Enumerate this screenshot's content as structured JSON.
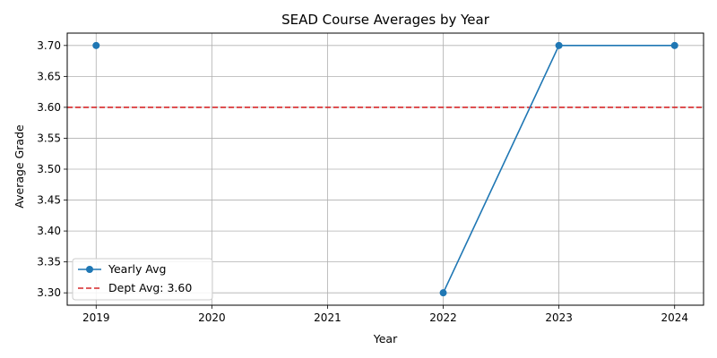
{
  "chart_data": {
    "type": "line",
    "title": "SEAD Course Averages by Year",
    "xlabel": "Year",
    "ylabel": "Average Grade",
    "xlim": [
      2018.75,
      2024.25
    ],
    "ylim": [
      3.28,
      3.72
    ],
    "x_ticks": [
      2019,
      2020,
      2021,
      2022,
      2023,
      2024
    ],
    "x_tick_labels": [
      "2019",
      "2020",
      "2021",
      "2022",
      "2023",
      "2024"
    ],
    "y_ticks": [
      3.3,
      3.35,
      3.4,
      3.45,
      3.5,
      3.55,
      3.6,
      3.65,
      3.7
    ],
    "y_tick_labels": [
      "3.30",
      "3.35",
      "3.40",
      "3.45",
      "3.50",
      "3.55",
      "3.60",
      "3.65",
      "3.70"
    ],
    "grid": true,
    "legend_position": "lower-left",
    "series": [
      {
        "name": "Yearly Avg",
        "color": "#1f77b4",
        "marker": "circle",
        "segments": [
          [
            {
              "x": 2019,
              "y": 3.7
            }
          ],
          [
            {
              "x": 2022,
              "y": 3.3
            },
            {
              "x": 2023,
              "y": 3.7
            },
            {
              "x": 2024,
              "y": 3.7
            }
          ]
        ]
      }
    ],
    "reference_lines": [
      {
        "name": "Dept Avg: 3.60",
        "y": 3.6,
        "color": "#d62728",
        "style": "dashed"
      }
    ]
  }
}
